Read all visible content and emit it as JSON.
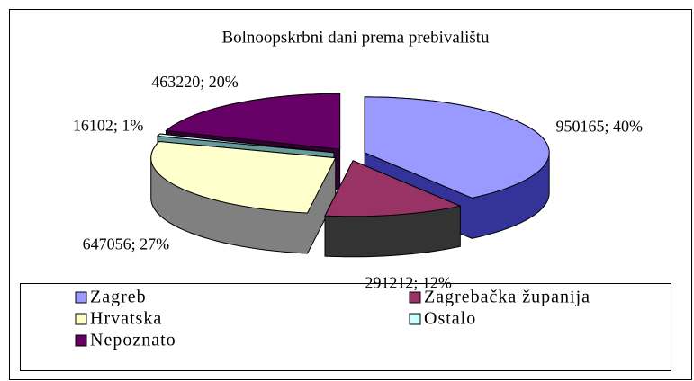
{
  "chart_data": {
    "type": "pie",
    "title": "Bolnoopskrbni dani prema prebivalištu",
    "categories": [
      "Zagreb",
      "Zagrebačka županija",
      "Hrvatska",
      "Ostalo",
      "Nepoznato"
    ],
    "values": [
      950165,
      291212,
      647056,
      16102,
      463220
    ],
    "value_labels": [
      "950165; 40%",
      "291212; 12%",
      "647056; 27%",
      "16102; 1%",
      "463220; 20%"
    ],
    "colors": [
      "#9999ff",
      "#993366",
      "#ffffcc",
      "#ccffff",
      "#660066"
    ],
    "side_colors": [
      "#333399",
      "#333333",
      "#808080",
      "#669999",
      "#330033"
    ],
    "legend": "bottom"
  }
}
